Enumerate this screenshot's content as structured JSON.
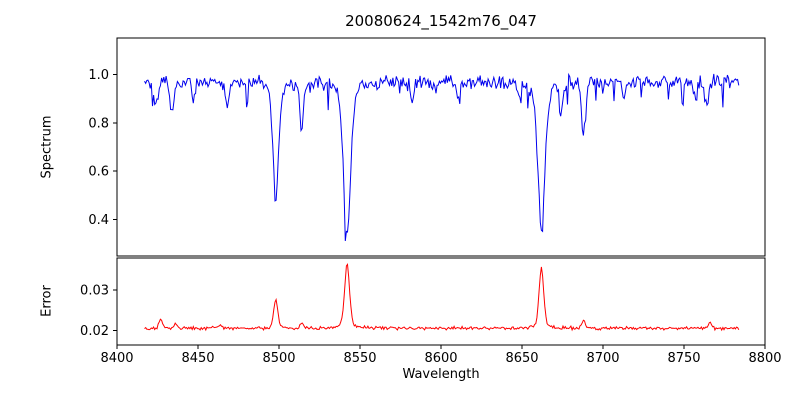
{
  "chart_data": {
    "type": "line",
    "title": "20080624_1542m76_047",
    "xlabel": "Wavelength",
    "xlim": [
      8400,
      8800
    ],
    "x_ticks": [
      8400,
      8450,
      8500,
      8550,
      8600,
      8650,
      8700,
      8750,
      8800
    ],
    "x_range": [
      8417,
      8784
    ],
    "grid": false,
    "legend": "none",
    "panels": [
      {
        "name": "spectrum",
        "ylabel": "Spectrum",
        "color": "#0000ee",
        "ylim": [
          0.25,
          1.15
        ],
        "y_ticks": [
          0.4,
          0.6,
          0.8,
          1.0
        ],
        "continuum": 0.97,
        "noise_amplitude": 0.035,
        "spike_depth": 0.11,
        "absorption_lines": [
          {
            "center": 8424,
            "depth": 0.1,
            "width": 1.2
          },
          {
            "center": 8434,
            "depth": 0.13,
            "width": 1.2
          },
          {
            "center": 8447,
            "depth": 0.08,
            "width": 1.0
          },
          {
            "center": 8468,
            "depth": 0.1,
            "width": 1.2
          },
          {
            "center": 8498,
            "depth": 0.48,
            "width": 1.9,
            "wings": true
          },
          {
            "center": 8514,
            "depth": 0.19,
            "width": 1.3
          },
          {
            "center": 8542,
            "depth": 0.63,
            "width": 2.4,
            "wings": true
          },
          {
            "center": 8582,
            "depth": 0.08,
            "width": 1.0
          },
          {
            "center": 8611,
            "depth": 0.07,
            "width": 1.0
          },
          {
            "center": 8648,
            "depth": 0.06,
            "width": 1.0
          },
          {
            "center": 8662,
            "depth": 0.62,
            "width": 2.3,
            "wings": true
          },
          {
            "center": 8674,
            "depth": 0.12,
            "width": 1.1
          },
          {
            "center": 8688,
            "depth": 0.22,
            "width": 1.3
          },
          {
            "center": 8713,
            "depth": 0.08,
            "width": 1.0
          },
          {
            "center": 8757,
            "depth": 0.07,
            "width": 1.0
          },
          {
            "center": 8764,
            "depth": 0.1,
            "width": 1.1
          }
        ]
      },
      {
        "name": "error",
        "ylabel": "Error",
        "color": "#ff0000",
        "ylim": [
          0.0165,
          0.0378
        ],
        "y_ticks": [
          0.02,
          0.03
        ],
        "baseline": 0.0206,
        "noise_amplitude": 0.0005,
        "peaks": [
          {
            "center": 8427,
            "height": 0.0022,
            "width": 1.1
          },
          {
            "center": 8436,
            "height": 0.0012,
            "width": 1.0
          },
          {
            "center": 8464,
            "height": 0.0008,
            "width": 1.0
          },
          {
            "center": 8498,
            "height": 0.007,
            "width": 1.3
          },
          {
            "center": 8514,
            "height": 0.0013,
            "width": 1.0
          },
          {
            "center": 8542,
            "height": 0.0158,
            "width": 1.6,
            "wings": true
          },
          {
            "center": 8662,
            "height": 0.015,
            "width": 1.5,
            "wings": true
          },
          {
            "center": 8688,
            "height": 0.002,
            "width": 1.0
          },
          {
            "center": 8766,
            "height": 0.0013,
            "width": 1.0
          }
        ]
      }
    ]
  }
}
